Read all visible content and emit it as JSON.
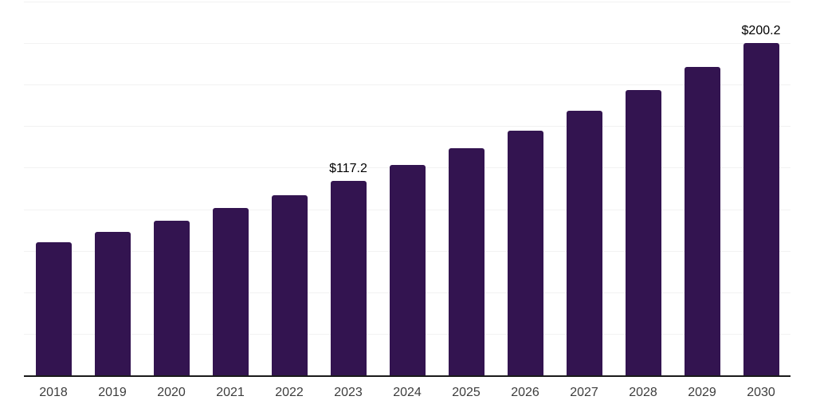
{
  "chart_data": {
    "type": "bar",
    "title": "",
    "xlabel": "",
    "ylabel": "",
    "categories": [
      "2018",
      "2019",
      "2020",
      "2021",
      "2022",
      "2023",
      "2024",
      "2025",
      "2026",
      "2027",
      "2028",
      "2029",
      "2030"
    ],
    "values": [
      80.0,
      86.3,
      93.2,
      100.6,
      108.6,
      117.2,
      126.5,
      136.6,
      147.4,
      159.2,
      171.8,
      185.5,
      200.2
    ],
    "annotations": {
      "2023": "$117.2",
      "2030": "$200.2"
    },
    "ylim": [
      0,
      225
    ],
    "gridline_step": 25,
    "grid": true,
    "legend_position": "none",
    "colors": {
      "bar": "#331450",
      "gridline": "#f2f2f2",
      "axis": "#1a1a1a",
      "tick_label": "#3d3d3d",
      "value_label": "#000000",
      "background": "#ffffff"
    }
  }
}
